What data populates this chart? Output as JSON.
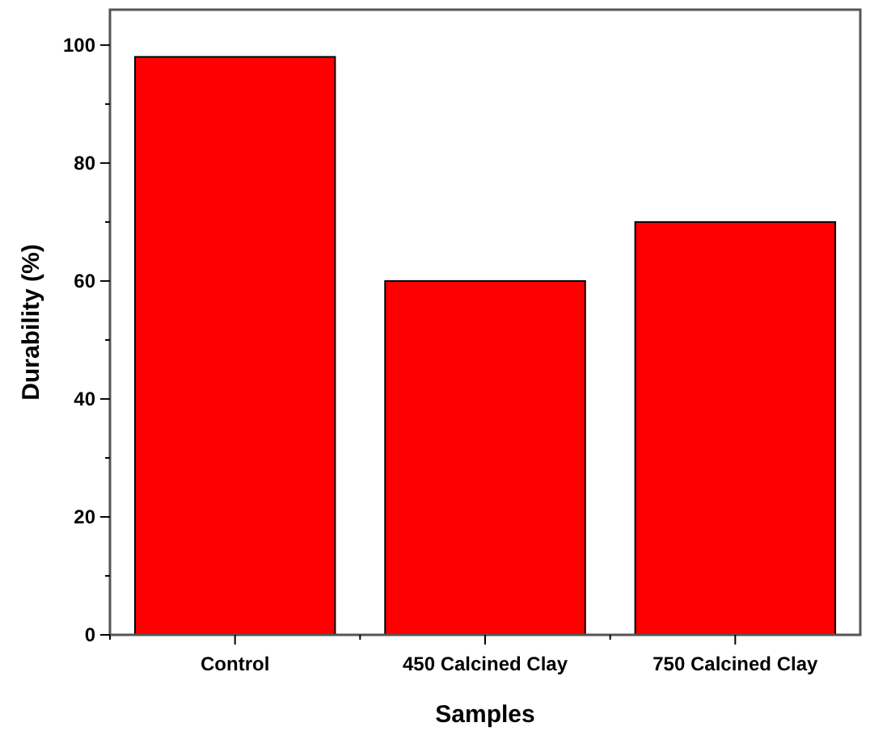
{
  "chart_data": {
    "type": "bar",
    "xlabel": "Samples",
    "ylabel": "Durability (%)",
    "categories": [
      "Control",
      "450 Calcined Clay",
      "750 Calcined Clay"
    ],
    "values": [
      98,
      60,
      70
    ],
    "color": "#ff0000",
    "ylim": [
      0,
      106
    ],
    "yticks": [
      0,
      {
        "value": 10,
        "label": null
      },
      20,
      {
        "value": 30,
        "label": null
      },
      40,
      {
        "value": 50,
        "label": null
      },
      60,
      {
        "value": 70,
        "label": null
      },
      80,
      {
        "value": 90,
        "label": null
      },
      100
    ],
    "grid": false
  }
}
